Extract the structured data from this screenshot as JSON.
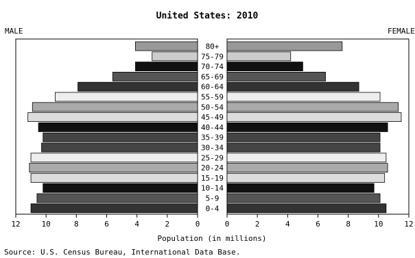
{
  "chart_data": {
    "type": "bar",
    "title": "United States: 2010",
    "left_label": "MALE",
    "right_label": "FEMALE",
    "xlabel": "Population (in millions)",
    "source": "Source: U.S. Census Bureau, International Data Base.",
    "xlim": [
      0,
      12
    ],
    "ticks": [
      "12",
      "10",
      "8",
      "6",
      "4",
      "2",
      "0",
      "0",
      "2",
      "4",
      "6",
      "8",
      "10",
      "12"
    ],
    "categories": [
      "80+",
      "75-79",
      "70-74",
      "65-69",
      "60-64",
      "55-59",
      "50-54",
      "45-49",
      "40-44",
      "35-39",
      "30-34",
      "25-29",
      "20-24",
      "15-19",
      "10-14",
      "5-9",
      "0-4"
    ],
    "series": [
      {
        "name": "MALE",
        "values": [
          4.1,
          3.0,
          4.1,
          5.6,
          7.9,
          9.4,
          10.9,
          11.2,
          10.5,
          10.2,
          10.3,
          11.0,
          11.1,
          11.0,
          10.2,
          10.6,
          11.0
        ]
      },
      {
        "name": "FEMALE",
        "values": [
          7.6,
          4.2,
          5.0,
          6.5,
          8.7,
          10.1,
          11.3,
          11.5,
          10.6,
          10.1,
          10.1,
          10.5,
          10.6,
          10.4,
          9.7,
          10.1,
          10.5
        ]
      }
    ],
    "bar_colors": [
      "#999999",
      "#cccccc",
      "#111111",
      "#555555",
      "#333333",
      "#eeeeee",
      "#aaaaaa",
      "#dddddd",
      "#111111",
      "#444444",
      "#444444",
      "#eeeeee",
      "#aaaaaa",
      "#dddddd",
      "#111111",
      "#555555",
      "#333333"
    ],
    "grid": false,
    "legend": "none"
  }
}
